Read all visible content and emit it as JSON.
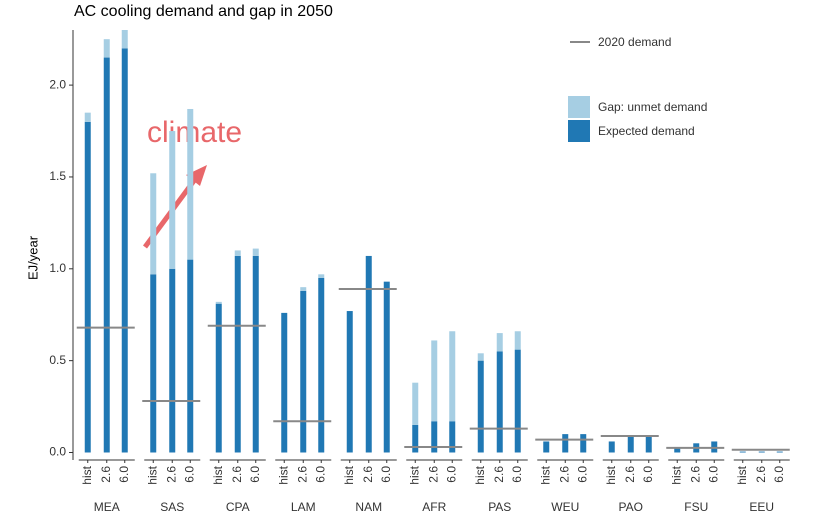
{
  "chart_data": {
    "type": "stacked-bar-facets",
    "title": "AC cooling demand and gap in 2050",
    "y_label": "EJ/year",
    "groups": [
      "MEA",
      "SAS",
      "CPA",
      "LAM",
      "NAM",
      "AFR",
      "PAS",
      "WEU",
      "PAO",
      "FSU",
      "EEU"
    ],
    "categories": [
      "hist",
      "2.6",
      "6.0"
    ],
    "series": [
      {
        "name": "Expected demand",
        "color": "#2078b4",
        "values": [
          [
            1.8,
            2.15,
            2.2
          ],
          [
            0.97,
            1.0,
            1.05
          ],
          [
            0.81,
            1.07,
            1.07
          ],
          [
            0.76,
            0.88,
            0.95
          ],
          [
            0.77,
            1.07,
            0.93
          ],
          [
            0.15,
            0.17,
            0.17
          ],
          [
            0.5,
            0.55,
            0.56
          ],
          [
            0.06,
            0.1,
            0.1
          ],
          [
            0.06,
            0.09,
            0.09
          ],
          [
            0.03,
            0.05,
            0.06
          ],
          [
            0.005,
            0.005,
            0.005
          ]
        ]
      },
      {
        "name": "Gap: unmet demand",
        "color": "#a6cee3",
        "values": [
          [
            0.05,
            0.1,
            0.1
          ],
          [
            0.55,
            0.75,
            0.82
          ],
          [
            0.01,
            0.03,
            0.04
          ],
          [
            0,
            0.02,
            0.02
          ],
          [
            0,
            0,
            0
          ],
          [
            0.23,
            0.44,
            0.49
          ],
          [
            0.04,
            0.1,
            0.1
          ],
          [
            0,
            0,
            0
          ],
          [
            0,
            0,
            0
          ],
          [
            0,
            0,
            0
          ],
          [
            0,
            0,
            0
          ]
        ]
      }
    ],
    "reference": {
      "name": "2020 demand",
      "color": "#888888",
      "values": [
        0.68,
        0.28,
        0.69,
        0.17,
        0.89,
        0.03,
        0.13,
        0.07,
        0.09,
        0.025,
        0.015
      ]
    },
    "ylim": [
      -0.03,
      2.3
    ],
    "yticks": [
      {
        "value": 0,
        "label": "0.0"
      },
      0.5,
      {
        "value": 1,
        "label": "1.0"
      },
      1.5,
      {
        "value": 2,
        "label": "2.0"
      }
    ],
    "annotations": [
      {
        "text": "climate",
        "color": "#e8676a"
      }
    ]
  }
}
